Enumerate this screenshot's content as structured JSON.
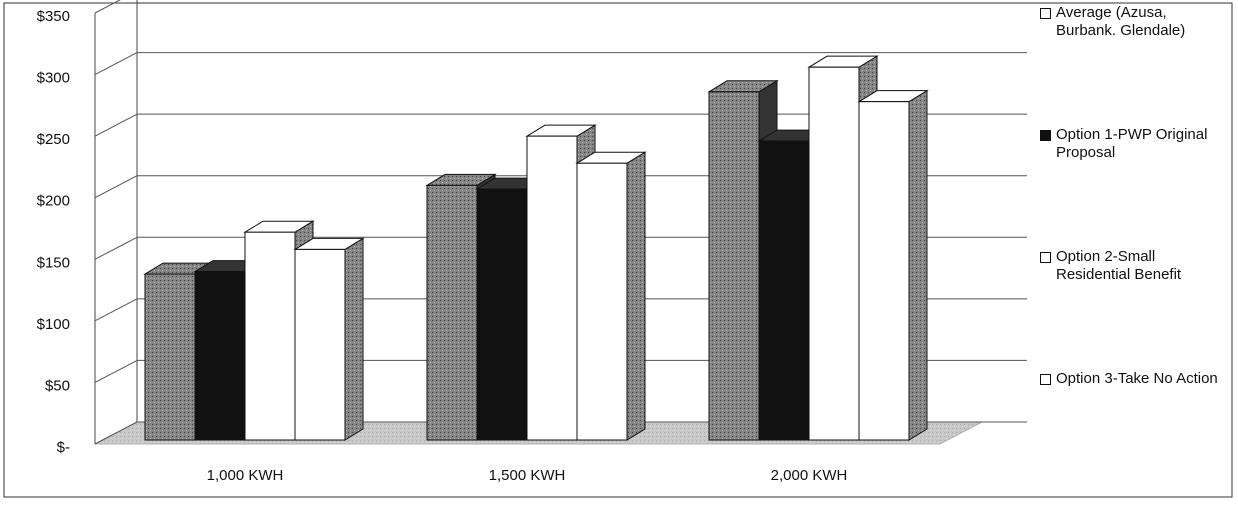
{
  "chart_data": {
    "type": "bar3d",
    "categories": [
      "1,000 KWH",
      "1,500 KWH",
      "2,000 KWH"
    ],
    "series": [
      {
        "name": "Average (Azusa, Burbank. Glendale)",
        "color": "#858585",
        "values": [
          138,
          210,
          286
        ]
      },
      {
        "name": "Option 1-PWP Original Proposal",
        "color": "#111111",
        "values": [
          140,
          207,
          246
        ]
      },
      {
        "name": "Option 2-Small Residential Benefit",
        "color": "#ffffff",
        "values": [
          172,
          250,
          306
        ]
      },
      {
        "name": "Option 3-Take No Action",
        "color": "#ffffff",
        "values": [
          158,
          228,
          278
        ]
      }
    ],
    "ylim": [
      0,
      350
    ],
    "yticks": [
      {
        "value": 0,
        "label": "$-"
      },
      {
        "value": 50,
        "label": "$50"
      },
      {
        "value": 100,
        "label": "$100"
      },
      {
        "value": 150,
        "label": "$150"
      },
      {
        "value": 200,
        "label": "$200"
      },
      {
        "value": 250,
        "label": "$250"
      },
      {
        "value": 300,
        "label": "$300"
      },
      {
        "value": 350,
        "label": "$350"
      }
    ],
    "grid": true,
    "legend": "right"
  }
}
